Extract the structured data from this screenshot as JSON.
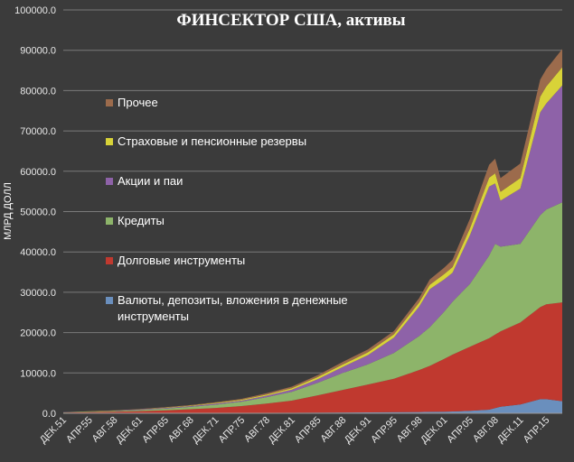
{
  "chart_data": {
    "type": "area",
    "stacked": true,
    "title": "ФИНСЕКТОР США, активы",
    "ylabel": "МЛРД ДОЛЛ",
    "xlabel": "",
    "ylim": [
      0,
      100000
    ],
    "yticks": [
      "0.0",
      "10000.0",
      "20000.0",
      "30000.0",
      "40000.0",
      "50000.0",
      "60000.0",
      "70000.0",
      "80000.0",
      "90000.0",
      "100000.0"
    ],
    "grid": true,
    "legend_position": "left-inside",
    "x_ticks": [
      "ДЕК.51",
      "АПР.55",
      "АВГ.58",
      "ДЕК.61",
      "АПР.65",
      "АВГ.68",
      "ДЕК.71",
      "АПР.75",
      "АВГ.78",
      "ДЕК.81",
      "АПР.85",
      "АВГ.88",
      "ДЕК.91",
      "АПР.95",
      "АВГ.98",
      "ДЕК.01",
      "АПР.05",
      "АВГ.08",
      "ДЕК.11",
      "АПР.15"
    ],
    "x_years": [
      1951.9,
      1955.3,
      1958.6,
      1961.9,
      1965.3,
      1968.6,
      1971.9,
      1975.3,
      1978.6,
      1981.9,
      1985.3,
      1988.6,
      1991.9,
      1995.3,
      1998.6,
      2001.9,
      2005.3,
      2008.6,
      2011.9,
      2015.3
    ],
    "x_range": [
      1951.9,
      2017.4
    ],
    "x": [
      1951.9,
      1955.3,
      1958.6,
      1961.9,
      1965.3,
      1968.6,
      1971.9,
      1975.3,
      1978.6,
      1981.9,
      1985.3,
      1988.6,
      1991.9,
      1995.3,
      1998.6,
      2000.0,
      2001.9,
      2003.0,
      2005.3,
      2007.8,
      2008.6,
      2009.3,
      2011.9,
      2014.5,
      2015.3,
      2017.4
    ],
    "series": [
      {
        "name": "Валюты, депозиты, вложения в денежные инструменты",
        "color": "#6a8fbd",
        "values": [
          10,
          15,
          20,
          30,
          40,
          55,
          70,
          90,
          110,
          130,
          160,
          200,
          230,
          270,
          320,
          350,
          400,
          450,
          600,
          900,
          1300,
          1600,
          2200,
          3500,
          3500,
          3000
        ]
      },
      {
        "name": "Долговые инструменты",
        "color": "#c0392f",
        "values": [
          150,
          250,
          350,
          500,
          700,
          950,
          1250,
          1700,
          2300,
          3000,
          4300,
          5600,
          6900,
          8300,
          10400,
          11400,
          13100,
          14100,
          15900,
          17700,
          18200,
          18700,
          20300,
          22800,
          23500,
          24500
        ]
      },
      {
        "name": "Кредиты",
        "color": "#8db46a",
        "values": [
          70,
          120,
          180,
          280,
          400,
          580,
          800,
          1100,
          1600,
          2200,
          3100,
          4200,
          5000,
          6400,
          8400,
          9600,
          11700,
          13100,
          15600,
          20500,
          22500,
          21000,
          19500,
          22800,
          23500,
          24800
        ]
      },
      {
        "name": "Акции и паи",
        "color": "#8e62a8",
        "values": [
          30,
          50,
          80,
          120,
          180,
          200,
          300,
          250,
          350,
          500,
          900,
          1500,
          2300,
          3800,
          7300,
          9400,
          8000,
          7200,
          12100,
          17100,
          15000,
          11400,
          13700,
          25500,
          26300,
          29000
        ]
      },
      {
        "name": "Страховые и пенсионные резервы",
        "color": "#d8d338",
        "values": [
          20,
          30,
          40,
          60,
          90,
          120,
          160,
          210,
          300,
          400,
          500,
          600,
          700,
          800,
          1000,
          1100,
          1300,
          1400,
          1700,
          2200,
          2500,
          2200,
          2600,
          3900,
          4200,
          4500
        ]
      },
      {
        "name": "Прочее",
        "color": "#9c6b4c",
        "values": [
          20,
          35,
          50,
          70,
          100,
          130,
          170,
          220,
          300,
          370,
          500,
          650,
          700,
          800,
          1100,
          1300,
          1600,
          1800,
          2400,
          3200,
          3600,
          3400,
          3600,
          4200,
          4300,
          4500
        ]
      }
    ]
  }
}
